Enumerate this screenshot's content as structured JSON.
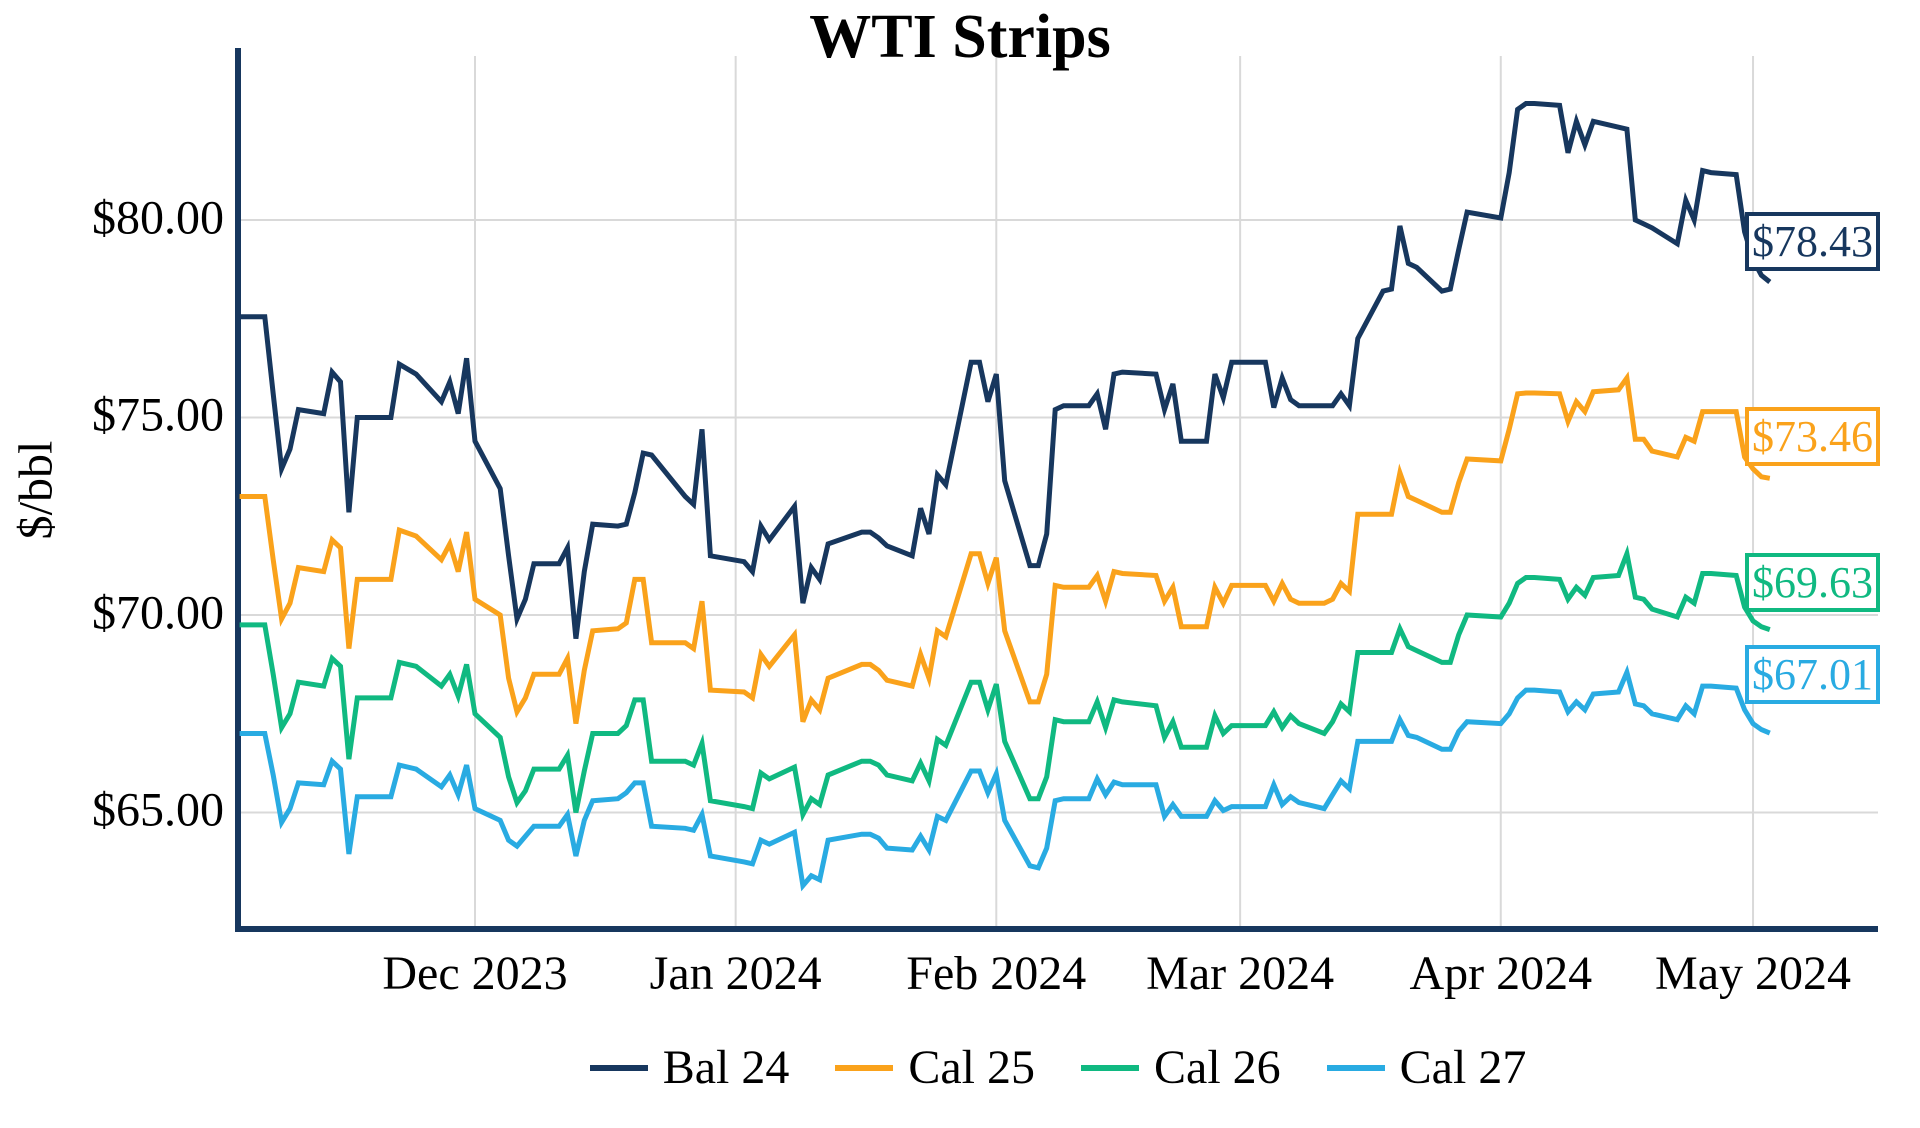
{
  "title": "WTI Strips",
  "y_axis": {
    "label": "$/bbl",
    "ticks": [
      "$80.00",
      "$75.00",
      "$70.00",
      "$65.00"
    ]
  },
  "x_axis": {
    "ticks": [
      "Dec 2023",
      "Jan 2024",
      "Feb 2024",
      "Mar 2024",
      "Apr 2024",
      "May 2024"
    ]
  },
  "legend": {
    "items": [
      {
        "label": "Bal 24",
        "color": "#17375e"
      },
      {
        "label": "Cal 25",
        "color": "#faa21b"
      },
      {
        "label": "Cal 26",
        "color": "#10b981"
      },
      {
        "label": "Cal 27",
        "color": "#29abe2"
      }
    ]
  },
  "end_labels": [
    {
      "text": "$78.43",
      "color": "#17375e"
    },
    {
      "text": "$73.46",
      "color": "#faa21b"
    },
    {
      "text": "$69.63",
      "color": "#10b981"
    },
    {
      "text": "$67.01",
      "color": "#29abe2"
    }
  ],
  "colors": {
    "grid": "#d9d9d9",
    "spine": "#17375e",
    "background": "#ffffff"
  },
  "chart_data": {
    "type": "line",
    "title": "WTI Strips",
    "ylabel": "$/bbl",
    "ylim": [
      62.0,
      84.5
    ],
    "yticks": [
      80,
      75,
      70,
      65
    ],
    "ytick_labels": [
      "$80.00",
      "$75.00",
      "$70.00",
      "$65.00"
    ],
    "xtick_labels": [
      "Dec 2023",
      "Jan 2024",
      "Feb 2024",
      "Mar 2024",
      "Apr 2024",
      "May 2024"
    ],
    "xtick_dates": [
      "2023-12-01",
      "2024-01-01",
      "2024-02-01",
      "2024-03-01",
      "2024-04-01",
      "2024-05-01"
    ],
    "grid": true,
    "legend_position": "bottom",
    "x": [
      "2023-11-03",
      "2023-11-06",
      "2023-11-07",
      "2023-11-08",
      "2023-11-09",
      "2023-11-10",
      "2023-11-13",
      "2023-11-14",
      "2023-11-15",
      "2023-11-16",
      "2023-11-17",
      "2023-11-20",
      "2023-11-21",
      "2023-11-22",
      "2023-11-24",
      "2023-11-27",
      "2023-11-28",
      "2023-11-29",
      "2023-11-30",
      "2023-12-01",
      "2023-12-04",
      "2023-12-05",
      "2023-12-06",
      "2023-12-07",
      "2023-12-08",
      "2023-12-11",
      "2023-12-12",
      "2023-12-13",
      "2023-12-14",
      "2023-12-15",
      "2023-12-18",
      "2023-12-19",
      "2023-12-20",
      "2023-12-21",
      "2023-12-22",
      "2023-12-26",
      "2023-12-27",
      "2023-12-28",
      "2023-12-29",
      "2024-01-02",
      "2024-01-03",
      "2024-01-04",
      "2024-01-05",
      "2024-01-08",
      "2024-01-09",
      "2024-01-10",
      "2024-01-11",
      "2024-01-12",
      "2024-01-16",
      "2024-01-17",
      "2024-01-18",
      "2024-01-19",
      "2024-01-22",
      "2024-01-23",
      "2024-01-24",
      "2024-01-25",
      "2024-01-26",
      "2024-01-29",
      "2024-01-30",
      "2024-01-31",
      "2024-02-01",
      "2024-02-02",
      "2024-02-05",
      "2024-02-06",
      "2024-02-07",
      "2024-02-08",
      "2024-02-09",
      "2024-02-12",
      "2024-02-13",
      "2024-02-14",
      "2024-02-15",
      "2024-02-16",
      "2024-02-20",
      "2024-02-21",
      "2024-02-22",
      "2024-02-23",
      "2024-02-26",
      "2024-02-27",
      "2024-02-28",
      "2024-02-29",
      "2024-03-01",
      "2024-03-04",
      "2024-03-05",
      "2024-03-06",
      "2024-03-07",
      "2024-03-08",
      "2024-03-11",
      "2024-03-12",
      "2024-03-13",
      "2024-03-14",
      "2024-03-15",
      "2024-03-18",
      "2024-03-19",
      "2024-03-20",
      "2024-03-21",
      "2024-03-22",
      "2024-03-25",
      "2024-03-26",
      "2024-03-27",
      "2024-03-28",
      "2024-04-01",
      "2024-04-02",
      "2024-04-03",
      "2024-04-04",
      "2024-04-05",
      "2024-04-08",
      "2024-04-09",
      "2024-04-10",
      "2024-04-11",
      "2024-04-12",
      "2024-04-15",
      "2024-04-16",
      "2024-04-17",
      "2024-04-18",
      "2024-04-19",
      "2024-04-22",
      "2024-04-23",
      "2024-04-24",
      "2024-04-25",
      "2024-04-26",
      "2024-04-29",
      "2024-04-30",
      "2024-05-01",
      "2024-05-02",
      "2024-05-03"
    ],
    "series": [
      {
        "name": "Bal 24",
        "color": "#17375e",
        "end_label": "$78.43",
        "values": [
          77.55,
          77.55,
          75.6,
          73.7,
          74.2,
          75.2,
          75.1,
          76.15,
          75.9,
          72.6,
          75.0,
          75.0,
          75.0,
          76.35,
          76.1,
          75.4,
          75.9,
          75.1,
          76.5,
          74.4,
          73.2,
          71.5,
          69.9,
          70.4,
          71.3,
          71.3,
          71.7,
          69.4,
          71.1,
          72.3,
          72.25,
          72.3,
          73.1,
          74.1,
          74.05,
          73.0,
          72.8,
          74.7,
          71.5,
          71.35,
          71.1,
          72.25,
          71.9,
          72.75,
          70.3,
          71.2,
          70.9,
          71.8,
          72.1,
          72.1,
          71.95,
          71.75,
          71.5,
          72.7,
          72.05,
          73.55,
          73.3,
          76.4,
          76.4,
          75.4,
          76.1,
          73.4,
          71.25,
          71.25,
          72.05,
          75.2,
          75.3,
          75.3,
          75.6,
          74.7,
          76.1,
          76.15,
          76.1,
          75.2,
          75.85,
          74.4,
          74.4,
          76.1,
          75.5,
          76.4,
          76.4,
          76.4,
          75.25,
          76.0,
          75.45,
          75.3,
          75.3,
          75.3,
          75.6,
          75.3,
          77.0,
          78.2,
          78.25,
          79.85,
          78.9,
          78.8,
          78.2,
          78.25,
          79.25,
          80.2,
          80.05,
          81.2,
          82.8,
          82.95,
          82.95,
          82.9,
          81.7,
          82.5,
          81.9,
          82.5,
          82.35,
          82.3,
          80.0,
          79.9,
          79.8,
          79.4,
          80.5,
          80.0,
          81.25,
          81.2,
          81.15,
          79.7,
          79.0,
          78.6,
          78.43
        ]
      },
      {
        "name": "Cal 25",
        "color": "#faa21b",
        "end_label": "$73.46",
        "values": [
          73.0,
          73.0,
          71.4,
          69.9,
          70.3,
          71.2,
          71.1,
          71.9,
          71.7,
          69.15,
          70.9,
          70.9,
          70.9,
          72.15,
          72.0,
          71.4,
          71.8,
          71.1,
          72.1,
          70.4,
          70.0,
          68.4,
          67.55,
          67.9,
          68.5,
          68.5,
          68.9,
          67.25,
          68.6,
          69.6,
          69.65,
          69.8,
          70.9,
          70.9,
          69.3,
          69.3,
          69.15,
          70.35,
          68.1,
          68.05,
          67.9,
          69.0,
          68.7,
          69.5,
          67.3,
          67.85,
          67.6,
          68.4,
          68.75,
          68.75,
          68.6,
          68.35,
          68.2,
          69.0,
          68.4,
          69.6,
          69.45,
          71.55,
          71.55,
          70.8,
          71.45,
          69.6,
          67.8,
          67.8,
          68.5,
          70.75,
          70.7,
          70.7,
          71.0,
          70.35,
          71.1,
          71.05,
          71.0,
          70.35,
          70.7,
          69.7,
          69.7,
          70.7,
          70.3,
          70.75,
          70.75,
          70.75,
          70.35,
          70.8,
          70.4,
          70.3,
          70.3,
          70.4,
          70.8,
          70.6,
          72.55,
          72.55,
          72.55,
          73.6,
          73.0,
          72.9,
          72.6,
          72.6,
          73.35,
          73.95,
          73.9,
          74.7,
          75.6,
          75.62,
          75.62,
          75.6,
          74.9,
          75.4,
          75.15,
          75.65,
          75.7,
          76.0,
          74.45,
          74.45,
          74.15,
          74.0,
          74.5,
          74.4,
          75.15,
          75.15,
          75.15,
          74.0,
          73.7,
          73.5,
          73.46
        ]
      },
      {
        "name": "Cal 26",
        "color": "#10b981",
        "end_label": "$69.63",
        "values": [
          69.75,
          69.75,
          68.5,
          67.15,
          67.5,
          68.3,
          68.2,
          68.9,
          68.7,
          66.35,
          67.9,
          67.9,
          67.9,
          68.8,
          68.7,
          68.2,
          68.5,
          67.95,
          68.75,
          67.5,
          66.9,
          65.9,
          65.25,
          65.55,
          66.1,
          66.1,
          66.45,
          65.0,
          66.05,
          67.0,
          67.0,
          67.2,
          67.85,
          67.85,
          66.3,
          66.3,
          66.2,
          66.75,
          65.3,
          65.15,
          65.1,
          66.0,
          65.85,
          66.15,
          64.95,
          65.35,
          65.2,
          65.95,
          66.3,
          66.3,
          66.2,
          65.95,
          65.8,
          66.25,
          65.8,
          66.85,
          66.7,
          68.3,
          68.3,
          67.6,
          68.25,
          66.8,
          65.35,
          65.35,
          65.9,
          67.35,
          67.3,
          67.3,
          67.8,
          67.15,
          67.85,
          67.8,
          67.7,
          66.9,
          67.3,
          66.65,
          66.65,
          67.45,
          67.0,
          67.2,
          67.2,
          67.2,
          67.55,
          67.15,
          67.45,
          67.25,
          67.0,
          67.3,
          67.75,
          67.55,
          69.05,
          69.05,
          69.05,
          69.65,
          69.2,
          69.1,
          68.8,
          68.8,
          69.5,
          70.0,
          69.95,
          70.3,
          70.8,
          70.95,
          70.95,
          70.9,
          70.4,
          70.7,
          70.5,
          70.95,
          71.0,
          71.55,
          70.45,
          70.4,
          70.15,
          69.95,
          70.45,
          70.3,
          71.05,
          71.05,
          71.0,
          70.2,
          69.85,
          69.7,
          69.63
        ]
      },
      {
        "name": "Cal 27",
        "color": "#29abe2",
        "end_label": "$67.01",
        "values": [
          67.0,
          67.0,
          65.95,
          64.75,
          65.1,
          65.75,
          65.7,
          66.3,
          66.1,
          63.95,
          65.4,
          65.4,
          65.4,
          66.2,
          66.1,
          65.65,
          65.95,
          65.45,
          66.2,
          65.1,
          64.8,
          64.3,
          64.15,
          64.4,
          64.65,
          64.65,
          64.95,
          63.9,
          64.8,
          65.3,
          65.35,
          65.5,
          65.75,
          65.75,
          64.65,
          64.6,
          64.55,
          64.95,
          63.9,
          63.75,
          63.7,
          64.3,
          64.2,
          64.5,
          63.15,
          63.4,
          63.3,
          64.3,
          64.45,
          64.45,
          64.35,
          64.1,
          64.05,
          64.4,
          64.05,
          64.9,
          64.8,
          66.05,
          66.05,
          65.5,
          65.98,
          64.8,
          63.65,
          63.6,
          64.1,
          65.3,
          65.35,
          65.35,
          65.85,
          65.45,
          65.77,
          65.7,
          65.7,
          64.9,
          65.2,
          64.9,
          64.9,
          65.3,
          65.05,
          65.15,
          65.15,
          65.15,
          65.7,
          65.2,
          65.4,
          65.25,
          65.1,
          65.45,
          65.8,
          65.6,
          66.8,
          66.8,
          66.8,
          67.35,
          66.95,
          66.9,
          66.6,
          66.6,
          67.05,
          67.3,
          67.25,
          67.5,
          67.9,
          68.1,
          68.1,
          68.05,
          67.55,
          67.8,
          67.6,
          68.0,
          68.05,
          68.55,
          67.75,
          67.7,
          67.5,
          67.35,
          67.7,
          67.5,
          68.2,
          68.2,
          68.15,
          67.6,
          67.25,
          67.1,
          67.01
        ]
      }
    ]
  }
}
